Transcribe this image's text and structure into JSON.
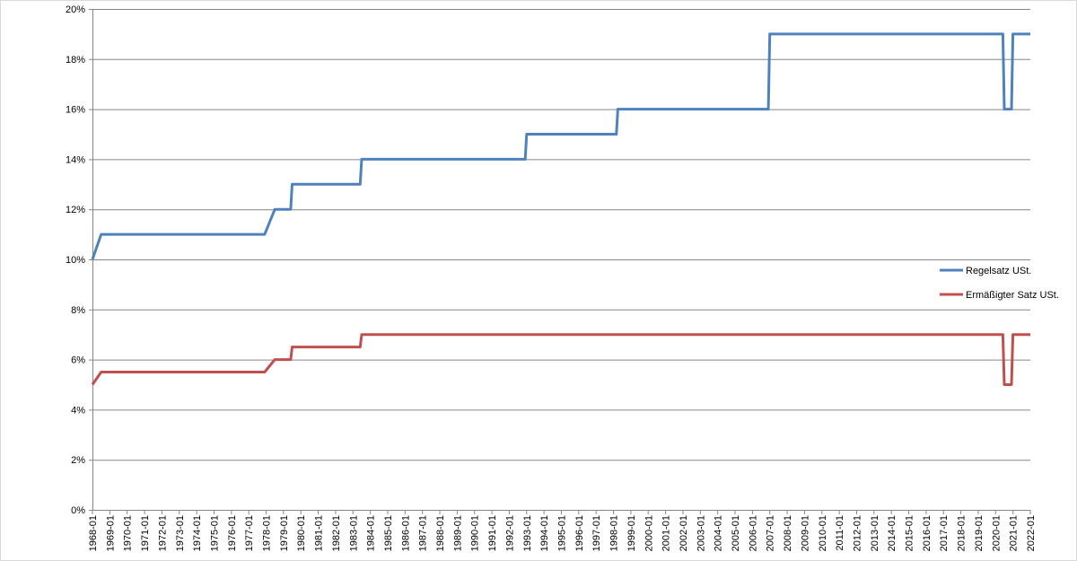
{
  "chart_data": {
    "type": "line",
    "title": "",
    "xlabel": "",
    "ylabel": "",
    "ylim": [
      0,
      20
    ],
    "y_ticks": [
      0,
      2,
      4,
      6,
      8,
      10,
      12,
      14,
      16,
      18,
      20
    ],
    "y_tick_labels": [
      "0%",
      "2%",
      "4%",
      "6%",
      "8%",
      "10%",
      "12%",
      "14%",
      "16%",
      "18%",
      "20%"
    ],
    "grid": true,
    "legend_position": "right",
    "categories": [
      "1968-01",
      "1969-01",
      "1970-01",
      "1971-01",
      "1972-01",
      "1973-01",
      "1974-01",
      "1975-01",
      "1976-01",
      "1977-01",
      "1978-01",
      "1979-01",
      "1980-01",
      "1981-01",
      "1982-01",
      "1983-01",
      "1984-01",
      "1985-01",
      "1986-01",
      "1987-01",
      "1988-01",
      "1989-01",
      "1990-01",
      "1991-01",
      "1992-01",
      "1993-01",
      "1994-01",
      "1995-01",
      "1996-01",
      "1997-01",
      "1998-01",
      "1999-01",
      "2000-01",
      "2001-01",
      "2002-01",
      "2003-01",
      "2004-01",
      "2005-01",
      "2006-01",
      "2007-01",
      "2008-01",
      "2009-01",
      "2010-01",
      "2011-01",
      "2012-01",
      "2013-01",
      "2014-01",
      "2015-01",
      "2016-01",
      "2017-01",
      "2018-01",
      "2019-01",
      "2020-01",
      "2021-01",
      "2022-01"
    ],
    "series": [
      {
        "name": "Regelsatz USt.",
        "color": "#4f81bd",
        "points": [
          [
            "1968-01",
            10
          ],
          [
            "1968-07",
            11
          ],
          [
            "1977-12",
            11
          ],
          [
            "1978-07",
            12
          ],
          [
            "1979-06",
            12
          ],
          [
            "1979-07",
            13
          ],
          [
            "1983-06",
            13
          ],
          [
            "1983-07",
            14
          ],
          [
            "1992-12",
            14
          ],
          [
            "1993-01",
            15
          ],
          [
            "1998-03",
            15
          ],
          [
            "1998-04",
            16
          ],
          [
            "2006-12",
            16
          ],
          [
            "2007-01",
            19
          ],
          [
            "2020-06",
            19
          ],
          [
            "2020-07",
            16
          ],
          [
            "2020-12",
            16
          ],
          [
            "2021-01",
            19
          ],
          [
            "2022-01",
            19
          ]
        ]
      },
      {
        "name": "Ermäßigter Satz USt.",
        "color": "#c0504d",
        "points": [
          [
            "1968-01",
            5
          ],
          [
            "1968-07",
            5.5
          ],
          [
            "1977-12",
            5.5
          ],
          [
            "1978-07",
            6
          ],
          [
            "1979-06",
            6
          ],
          [
            "1979-07",
            6.5
          ],
          [
            "1983-06",
            6.5
          ],
          [
            "1983-07",
            7
          ],
          [
            "2020-06",
            7
          ],
          [
            "2020-07",
            5
          ],
          [
            "2020-12",
            5
          ],
          [
            "2021-01",
            7
          ],
          [
            "2022-01",
            7
          ]
        ]
      }
    ]
  }
}
